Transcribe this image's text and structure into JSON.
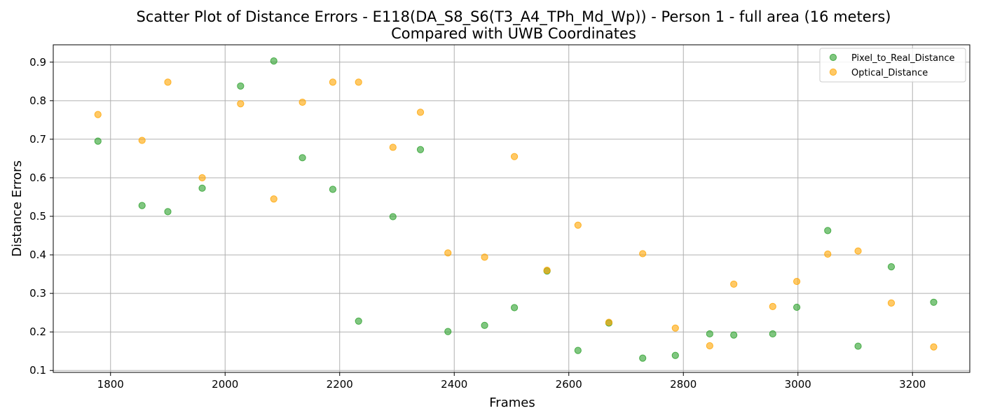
{
  "chart_data": {
    "type": "scatter",
    "title_line1": "Scatter Plot of Distance Errors - E118(DA_S8_S6(T3_A4_TPh_Md_Wp)) - Person 1 - full area (16 meters)",
    "title_line2": "Compared with UWB Coordinates",
    "xlabel": "Frames",
    "ylabel": "Distance Errors",
    "xlim": [
      1700,
      3300
    ],
    "ylim": [
      0.095,
      0.945
    ],
    "xticks": [
      1800,
      2000,
      2200,
      2400,
      2600,
      2800,
      3000,
      3200
    ],
    "yticks": [
      0.1,
      0.2,
      0.3,
      0.4,
      0.5,
      0.6,
      0.7,
      0.8,
      0.9
    ],
    "xtick_labels": [
      "1800",
      "2000",
      "2200",
      "2400",
      "2600",
      "2800",
      "3000",
      "3200"
    ],
    "ytick_labels": [
      "0.1",
      "0.2",
      "0.3",
      "0.4",
      "0.5",
      "0.6",
      "0.7",
      "0.8",
      "0.9"
    ],
    "grid": true,
    "legend_position": "top-right",
    "series": [
      {
        "name": "Pixel_to_Real_Distance",
        "color": "#2ca02c",
        "x": [
          1778,
          1855,
          1900,
          1960,
          2027,
          2085,
          2135,
          2188,
          2233,
          2293,
          2341,
          2389,
          2453,
          2505,
          2562,
          2616,
          2670,
          2729,
          2786,
          2846,
          2888,
          2956,
          2998,
          3052,
          3105,
          3163,
          3237
        ],
        "y": [
          0.695,
          0.528,
          0.512,
          0.573,
          0.838,
          0.903,
          0.652,
          0.57,
          0.228,
          0.499,
          0.673,
          0.201,
          0.217,
          0.263,
          0.358,
          0.152,
          0.223,
          0.132,
          0.139,
          0.195,
          0.192,
          0.195,
          0.264,
          0.463,
          0.163,
          0.369,
          0.277
        ]
      },
      {
        "name": "Optical_Distance",
        "color": "#ffa500",
        "x": [
          1778,
          1855,
          1900,
          1960,
          2027,
          2085,
          2135,
          2188,
          2233,
          2293,
          2341,
          2389,
          2453,
          2505,
          2562,
          2616,
          2670,
          2729,
          2786,
          2846,
          2888,
          2956,
          2998,
          3052,
          3105,
          3163,
          3237
        ],
        "y": [
          0.764,
          0.697,
          0.848,
          0.6,
          0.792,
          0.545,
          0.796,
          0.848,
          0.848,
          0.679,
          0.77,
          0.405,
          0.394,
          0.655,
          0.36,
          0.477,
          0.225,
          0.403,
          0.21,
          0.164,
          0.324,
          0.266,
          0.331,
          0.402,
          0.41,
          0.275,
          0.161
        ]
      }
    ]
  }
}
